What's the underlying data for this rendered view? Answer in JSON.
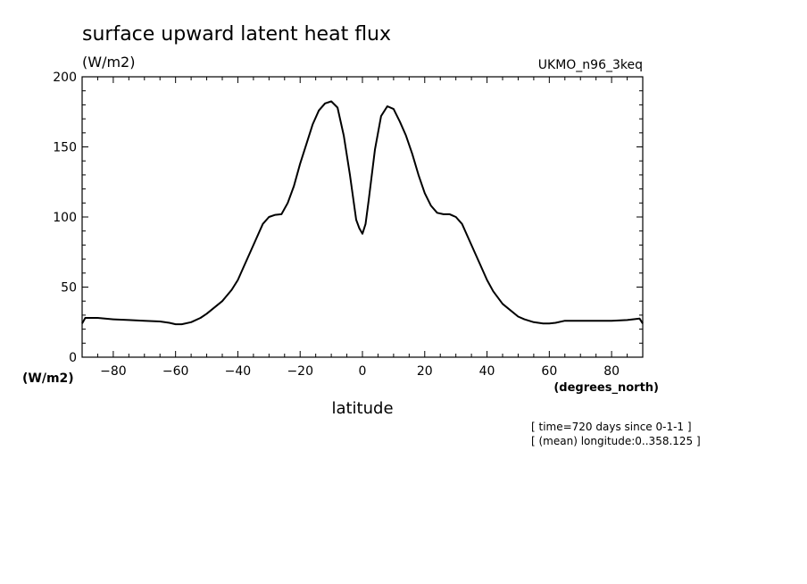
{
  "chart_data": {
    "type": "line",
    "title": "surface upward latent heat flux",
    "ylabel": "(W/m2)",
    "ylabel_bottom": "(W/m2)",
    "xlabel": "latitude",
    "xunits": "(degrees_north)",
    "dataset": "UKMO_n96_3keq",
    "notes": [
      "[ time=720 days since 0-1-1 ]",
      "[ (mean) longitude:0..358.125 ]"
    ],
    "xlim": [
      -90,
      90
    ],
    "ylim": [
      0,
      200
    ],
    "x_ticks": [
      -80,
      -60,
      -40,
      -20,
      0,
      20,
      40,
      60,
      80
    ],
    "y_ticks": [
      0,
      50,
      100,
      150,
      200
    ],
    "grid": false,
    "series": [
      {
        "color": "#000000",
        "x": [
          -90,
          -89,
          -85,
          -80,
          -75,
          -70,
          -65,
          -62,
          -60,
          -58,
          -55,
          -52,
          -50,
          -45,
          -42,
          -40,
          -38,
          -35,
          -32,
          -30,
          -28,
          -26,
          -24,
          -22,
          -20,
          -18,
          -16,
          -14,
          -12,
          -10,
          -8,
          -6,
          -4,
          -2,
          -1,
          0,
          1,
          2,
          4,
          6,
          8,
          10,
          12,
          14,
          16,
          18,
          20,
          22,
          24,
          26,
          28,
          30,
          32,
          35,
          38,
          40,
          42,
          45,
          50,
          52,
          55,
          58,
          60,
          62,
          65,
          70,
          75,
          80,
          85,
          89,
          90
        ],
        "y": [
          24,
          28,
          28,
          27,
          26.5,
          26,
          25.5,
          24.5,
          23.5,
          23.5,
          25,
          28,
          31,
          40,
          48,
          55,
          65,
          80,
          95,
          100,
          101.5,
          102,
          110,
          122,
          138,
          152,
          166,
          176,
          181,
          182.5,
          178,
          158,
          130,
          98,
          92,
          88,
          95,
          112,
          148,
          172,
          179,
          177,
          168,
          158,
          145,
          130,
          117,
          108,
          103,
          102,
          102,
          100,
          95,
          80,
          65,
          55,
          47,
          38,
          29,
          27,
          25,
          24,
          24,
          24.5,
          26,
          26,
          26,
          26,
          26.5,
          27.5,
          24
        ]
      }
    ]
  }
}
